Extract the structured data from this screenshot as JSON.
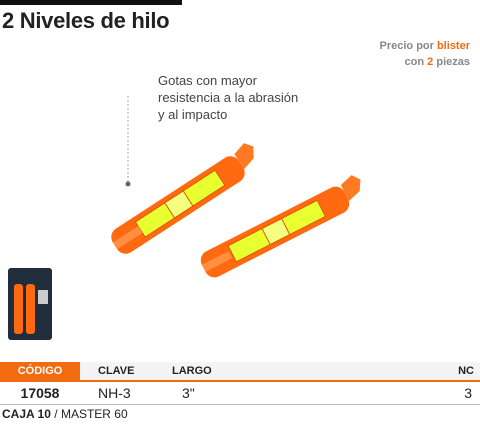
{
  "header": {
    "title": "2 Niveles de hilo"
  },
  "price_note": {
    "line1": {
      "text": "Precio por",
      "highlight": "blister"
    },
    "line2": {
      "text": "con",
      "highlight": "2",
      "suffix": "piezas"
    }
  },
  "callout": {
    "lines": [
      "Gotas con mayor",
      "resistencia a la abrasión",
      "y al impacto"
    ]
  },
  "table": {
    "columns": [
      "CÓDIGO",
      "CLAVE",
      "LARGO",
      "NC"
    ],
    "rows": [
      [
        "17058",
        "NH-3",
        "3\"",
        "3"
      ]
    ]
  },
  "footer": {
    "packaging": "CAJA 10",
    "separator": "/",
    "master": "MASTER 60"
  }
}
